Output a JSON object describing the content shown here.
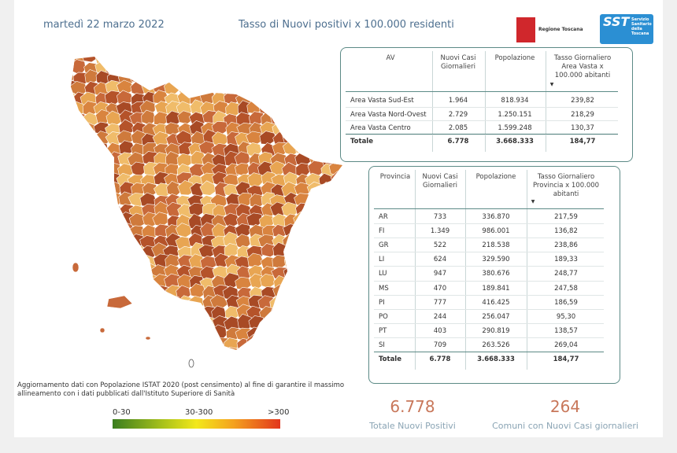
{
  "header": {
    "date": "martedì 22 marzo 2022",
    "title": "Tasso di Nuovi positivi x 100.000 residenti",
    "logo_region": "Regione Toscana",
    "logo_sst": "SST",
    "logo_sst_text": "Servizio Sanitario della Toscana"
  },
  "area_table": {
    "columns": [
      "AV",
      "Nuovi Casi Giornalieri",
      "Popolazione",
      "Tasso Giornaliero Area Vasta x 100.000 abitanti"
    ],
    "rows": [
      [
        "Area Vasta Sud-Est",
        "1.964",
        "818.934",
        "239,82"
      ],
      [
        "Area Vasta Nord-Ovest",
        "2.729",
        "1.250.151",
        "218,29"
      ],
      [
        "Area Vasta Centro",
        "2.085",
        "1.599.248",
        "130,37"
      ]
    ],
    "total": [
      "Totale",
      "6.778",
      "3.668.333",
      "184,77"
    ]
  },
  "province_table": {
    "columns": [
      "Provincia",
      "Nuovi Casi Giornalieri",
      "Popolazione",
      "Tasso Giornaliero Provincia x 100.000 abitanti"
    ],
    "rows": [
      [
        "AR",
        "733",
        "336.870",
        "217,59"
      ],
      [
        "FI",
        "1.349",
        "986.001",
        "136,82"
      ],
      [
        "GR",
        "522",
        "218.538",
        "238,86"
      ],
      [
        "LI",
        "624",
        "329.590",
        "189,33"
      ],
      [
        "LU",
        "947",
        "380.676",
        "248,77"
      ],
      [
        "MS",
        "470",
        "189.841",
        "247,58"
      ],
      [
        "PI",
        "777",
        "416.425",
        "186,59"
      ],
      [
        "PO",
        "244",
        "256.047",
        "95,30"
      ],
      [
        "PT",
        "403",
        "290.819",
        "138,57"
      ],
      [
        "SI",
        "709",
        "263.526",
        "269,04"
      ]
    ],
    "total": [
      "Totale",
      "6.778",
      "3.668.333",
      "184,77"
    ]
  },
  "footnote": "Aggiornamento dati con Popolazione ISTAT 2020 (post censimento) al fine di garantire il massimo allineamento con i dati pubblicati dall'Istituto Superiore di Sanità",
  "legend": [
    "0-30",
    "30-300",
    ">300"
  ],
  "kpis": [
    {
      "value": "6.778",
      "label": "Totale Nuovi Positivi"
    },
    {
      "value": "264",
      "label": "Comuni con Nuovi Casi giornalieri"
    }
  ]
}
